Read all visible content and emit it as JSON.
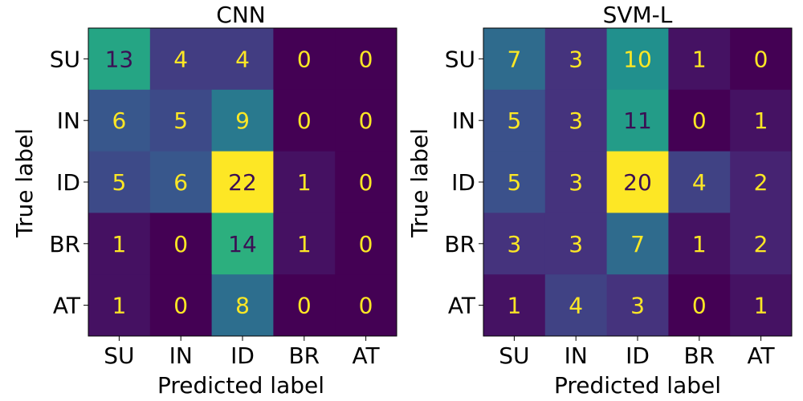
{
  "chart_data": [
    {
      "type": "heatmap",
      "title": "CNN",
      "xlabel": "Predicted label",
      "ylabel": "True label",
      "x_categories": [
        "SU",
        "IN",
        "ID",
        "BR",
        "AT"
      ],
      "y_categories": [
        "SU",
        "IN",
        "ID",
        "BR",
        "AT"
      ],
      "values": [
        [
          13,
          4,
          4,
          0,
          0
        ],
        [
          6,
          5,
          9,
          0,
          0
        ],
        [
          5,
          6,
          22,
          1,
          0
        ],
        [
          1,
          0,
          14,
          1,
          0
        ],
        [
          1,
          0,
          8,
          0,
          0
        ]
      ],
      "colormap": "viridis"
    },
    {
      "type": "heatmap",
      "title": "SVM-L",
      "xlabel": "Predicted label",
      "ylabel": "True label",
      "x_categories": [
        "SU",
        "IN",
        "ID",
        "BR",
        "AT"
      ],
      "y_categories": [
        "SU",
        "IN",
        "ID",
        "BR",
        "AT"
      ],
      "values": [
        [
          7,
          3,
          10,
          1,
          0
        ],
        [
          5,
          3,
          11,
          0,
          1
        ],
        [
          5,
          3,
          20,
          4,
          2
        ],
        [
          3,
          3,
          7,
          1,
          2
        ],
        [
          1,
          4,
          3,
          0,
          1
        ]
      ],
      "colormap": "viridis"
    }
  ]
}
